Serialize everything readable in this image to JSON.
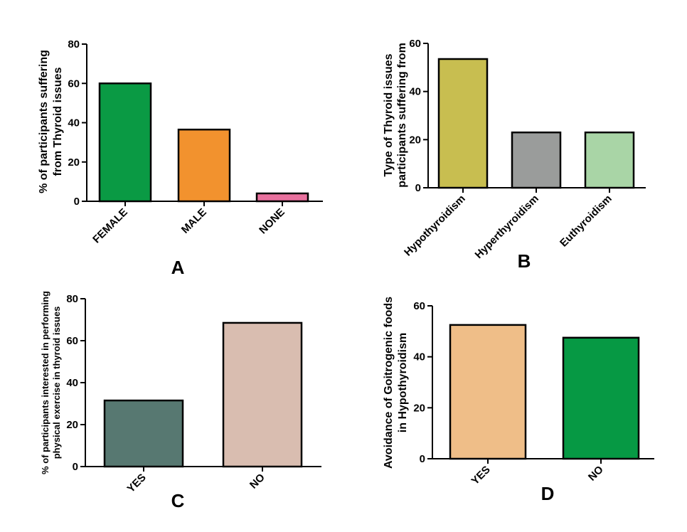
{
  "chart_data": [
    {
      "type": "bar",
      "panel_label": "A",
      "ylabel": [
        "% of participants suffering",
        "from Thyroid issues"
      ],
      "ylim": [
        0,
        80
      ],
      "yticks": [
        0,
        20,
        40,
        60,
        80
      ],
      "categories": [
        "FEMALE",
        "MALE",
        "NONE"
      ],
      "values": [
        60,
        36.5,
        4
      ],
      "colors": [
        "#0a9a44",
        "#f2922e",
        "#e8719e"
      ],
      "grid": false,
      "legend": "none"
    },
    {
      "type": "bar",
      "panel_label": "B",
      "ylabel": [
        "Type of Thyroid issues",
        "participants suffering from"
      ],
      "ylim": [
        0,
        60
      ],
      "yticks": [
        0,
        20,
        40,
        60
      ],
      "categories": [
        "Hypothyroidism",
        "Hyperthyroidism",
        "Euthyroidism"
      ],
      "values": [
        53.5,
        23,
        23
      ],
      "colors": [
        "#c8be50",
        "#9a9c9b",
        "#a9d5a6"
      ],
      "grid": false,
      "legend": "none"
    },
    {
      "type": "bar",
      "panel_label": "C",
      "ylabel": [
        "% of participants interested in performing",
        "physical exercise in thyroid issues"
      ],
      "ylim": [
        0,
        80
      ],
      "yticks": [
        0,
        20,
        40,
        60,
        80
      ],
      "categories": [
        "YES",
        "NO"
      ],
      "values": [
        31.5,
        68.5
      ],
      "colors": [
        "#577871",
        "#d9bdb0"
      ],
      "grid": false,
      "legend": "none"
    },
    {
      "type": "bar",
      "panel_label": "D",
      "ylabel": [
        "Avoidance of Goitrogenic foods",
        "in Hypothyroidism"
      ],
      "ylim": [
        0,
        60
      ],
      "yticks": [
        0,
        20,
        40,
        60
      ],
      "categories": [
        "YES",
        "NO"
      ],
      "values": [
        52.5,
        47.5
      ],
      "colors": [
        "#efbe88",
        "#069944"
      ],
      "grid": false,
      "legend": "none"
    }
  ]
}
